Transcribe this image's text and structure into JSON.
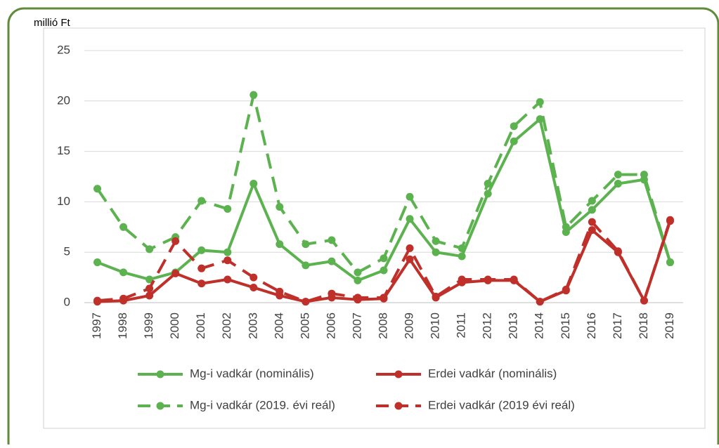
{
  "chart_data": {
    "type": "line",
    "y_unit_label": "millió Ft",
    "categories": [
      "1997",
      "1998",
      "1999",
      "2000",
      "2001",
      "2002",
      "2003",
      "2004",
      "2005",
      "2006",
      "2007",
      "2008",
      "2009",
      "2010",
      "2011",
      "2012",
      "2013",
      "2014",
      "2015",
      "2016",
      "2017",
      "2018",
      "2019"
    ],
    "series": [
      {
        "name": "Mg-i vadkár (nominális)",
        "color": "#5cb24f",
        "line_style": "solid",
        "values": [
          4.0,
          3.0,
          2.3,
          3.0,
          5.2,
          5.0,
          11.8,
          5.8,
          3.7,
          4.1,
          2.2,
          3.2,
          8.3,
          5.0,
          4.6,
          10.8,
          16.0,
          18.2,
          7.0,
          9.2,
          11.8,
          12.2,
          4.0
        ]
      },
      {
        "name": "Erdei vadkár (nominális)",
        "color": "#c0302a",
        "line_style": "solid",
        "values": [
          0.1,
          0.2,
          0.7,
          2.9,
          1.9,
          2.3,
          1.5,
          0.7,
          0.1,
          0.5,
          0.3,
          0.4,
          4.3,
          0.5,
          2.0,
          2.2,
          2.2,
          0.1,
          1.2,
          7.2,
          5.0,
          0.2,
          8.1
        ]
      },
      {
        "name": "Mg-i vadkár (2019. évi reál)",
        "color": "#5cb24f",
        "line_style": "dashed",
        "values": [
          11.3,
          7.5,
          5.3,
          6.5,
          10.1,
          9.3,
          20.6,
          9.5,
          5.8,
          6.2,
          3.0,
          4.4,
          10.5,
          6.1,
          5.4,
          11.8,
          17.5,
          19.9,
          7.5,
          10.1,
          12.7,
          12.7,
          4.0
        ]
      },
      {
        "name": "Erdei vadkár (2019 évi reál)",
        "color": "#c0302a",
        "line_style": "dashed",
        "values": [
          0.2,
          0.4,
          1.4,
          6.1,
          3.4,
          4.2,
          2.5,
          1.1,
          0.1,
          0.9,
          0.5,
          0.5,
          5.4,
          0.6,
          2.3,
          2.3,
          2.3,
          0.1,
          1.3,
          8.0,
          5.1,
          0.2,
          8.2
        ]
      }
    ],
    "ylim": [
      0,
      25
    ],
    "yticks": [
      0,
      5,
      10,
      15,
      20,
      25
    ],
    "grid": true
  }
}
